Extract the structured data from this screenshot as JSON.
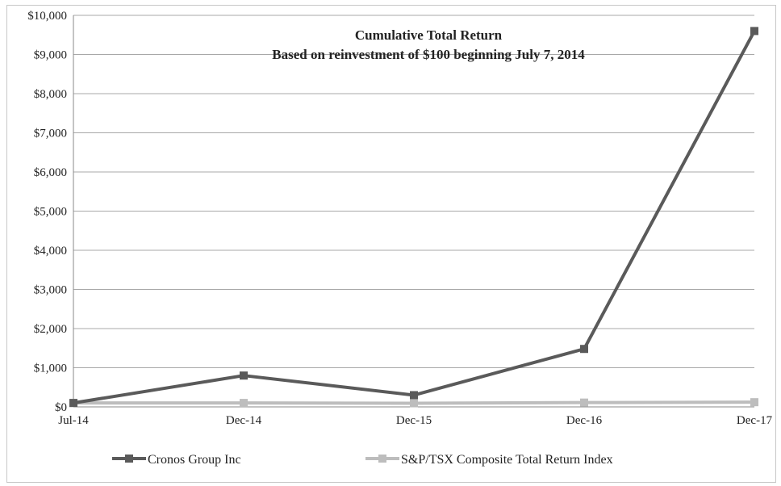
{
  "chart_data": {
    "type": "line",
    "title": "Cumulative Total Return",
    "subtitle": "Based on reinvestment of $100 beginning July 7, 2014",
    "xlabel": "",
    "ylabel": "",
    "categories": [
      "Jul-14",
      "Dec-14",
      "Dec-15",
      "Dec-16",
      "Dec-17"
    ],
    "ylim": [
      0,
      10000
    ],
    "yticks": [
      0,
      1000,
      2000,
      3000,
      4000,
      5000,
      6000,
      7000,
      8000,
      9000,
      10000
    ],
    "ytick_labels": [
      "$0",
      "$1,000",
      "$2,000",
      "$3,000",
      "$4,000",
      "$5,000",
      "$6,000",
      "$7,000",
      "$8,000",
      "$9,000",
      "$10,000"
    ],
    "grid": true,
    "legend_position": "bottom",
    "series": [
      {
        "name": "Cronos Group Inc",
        "values": [
          100,
          800,
          300,
          1480,
          9600
        ],
        "color": "#5a5a5a",
        "marker": "square"
      },
      {
        "name": "S&P/TSX Composite Total Return Index",
        "values": [
          100,
          101,
          92,
          110,
          120
        ],
        "color": "#bdbdbd",
        "marker": "square"
      }
    ]
  }
}
